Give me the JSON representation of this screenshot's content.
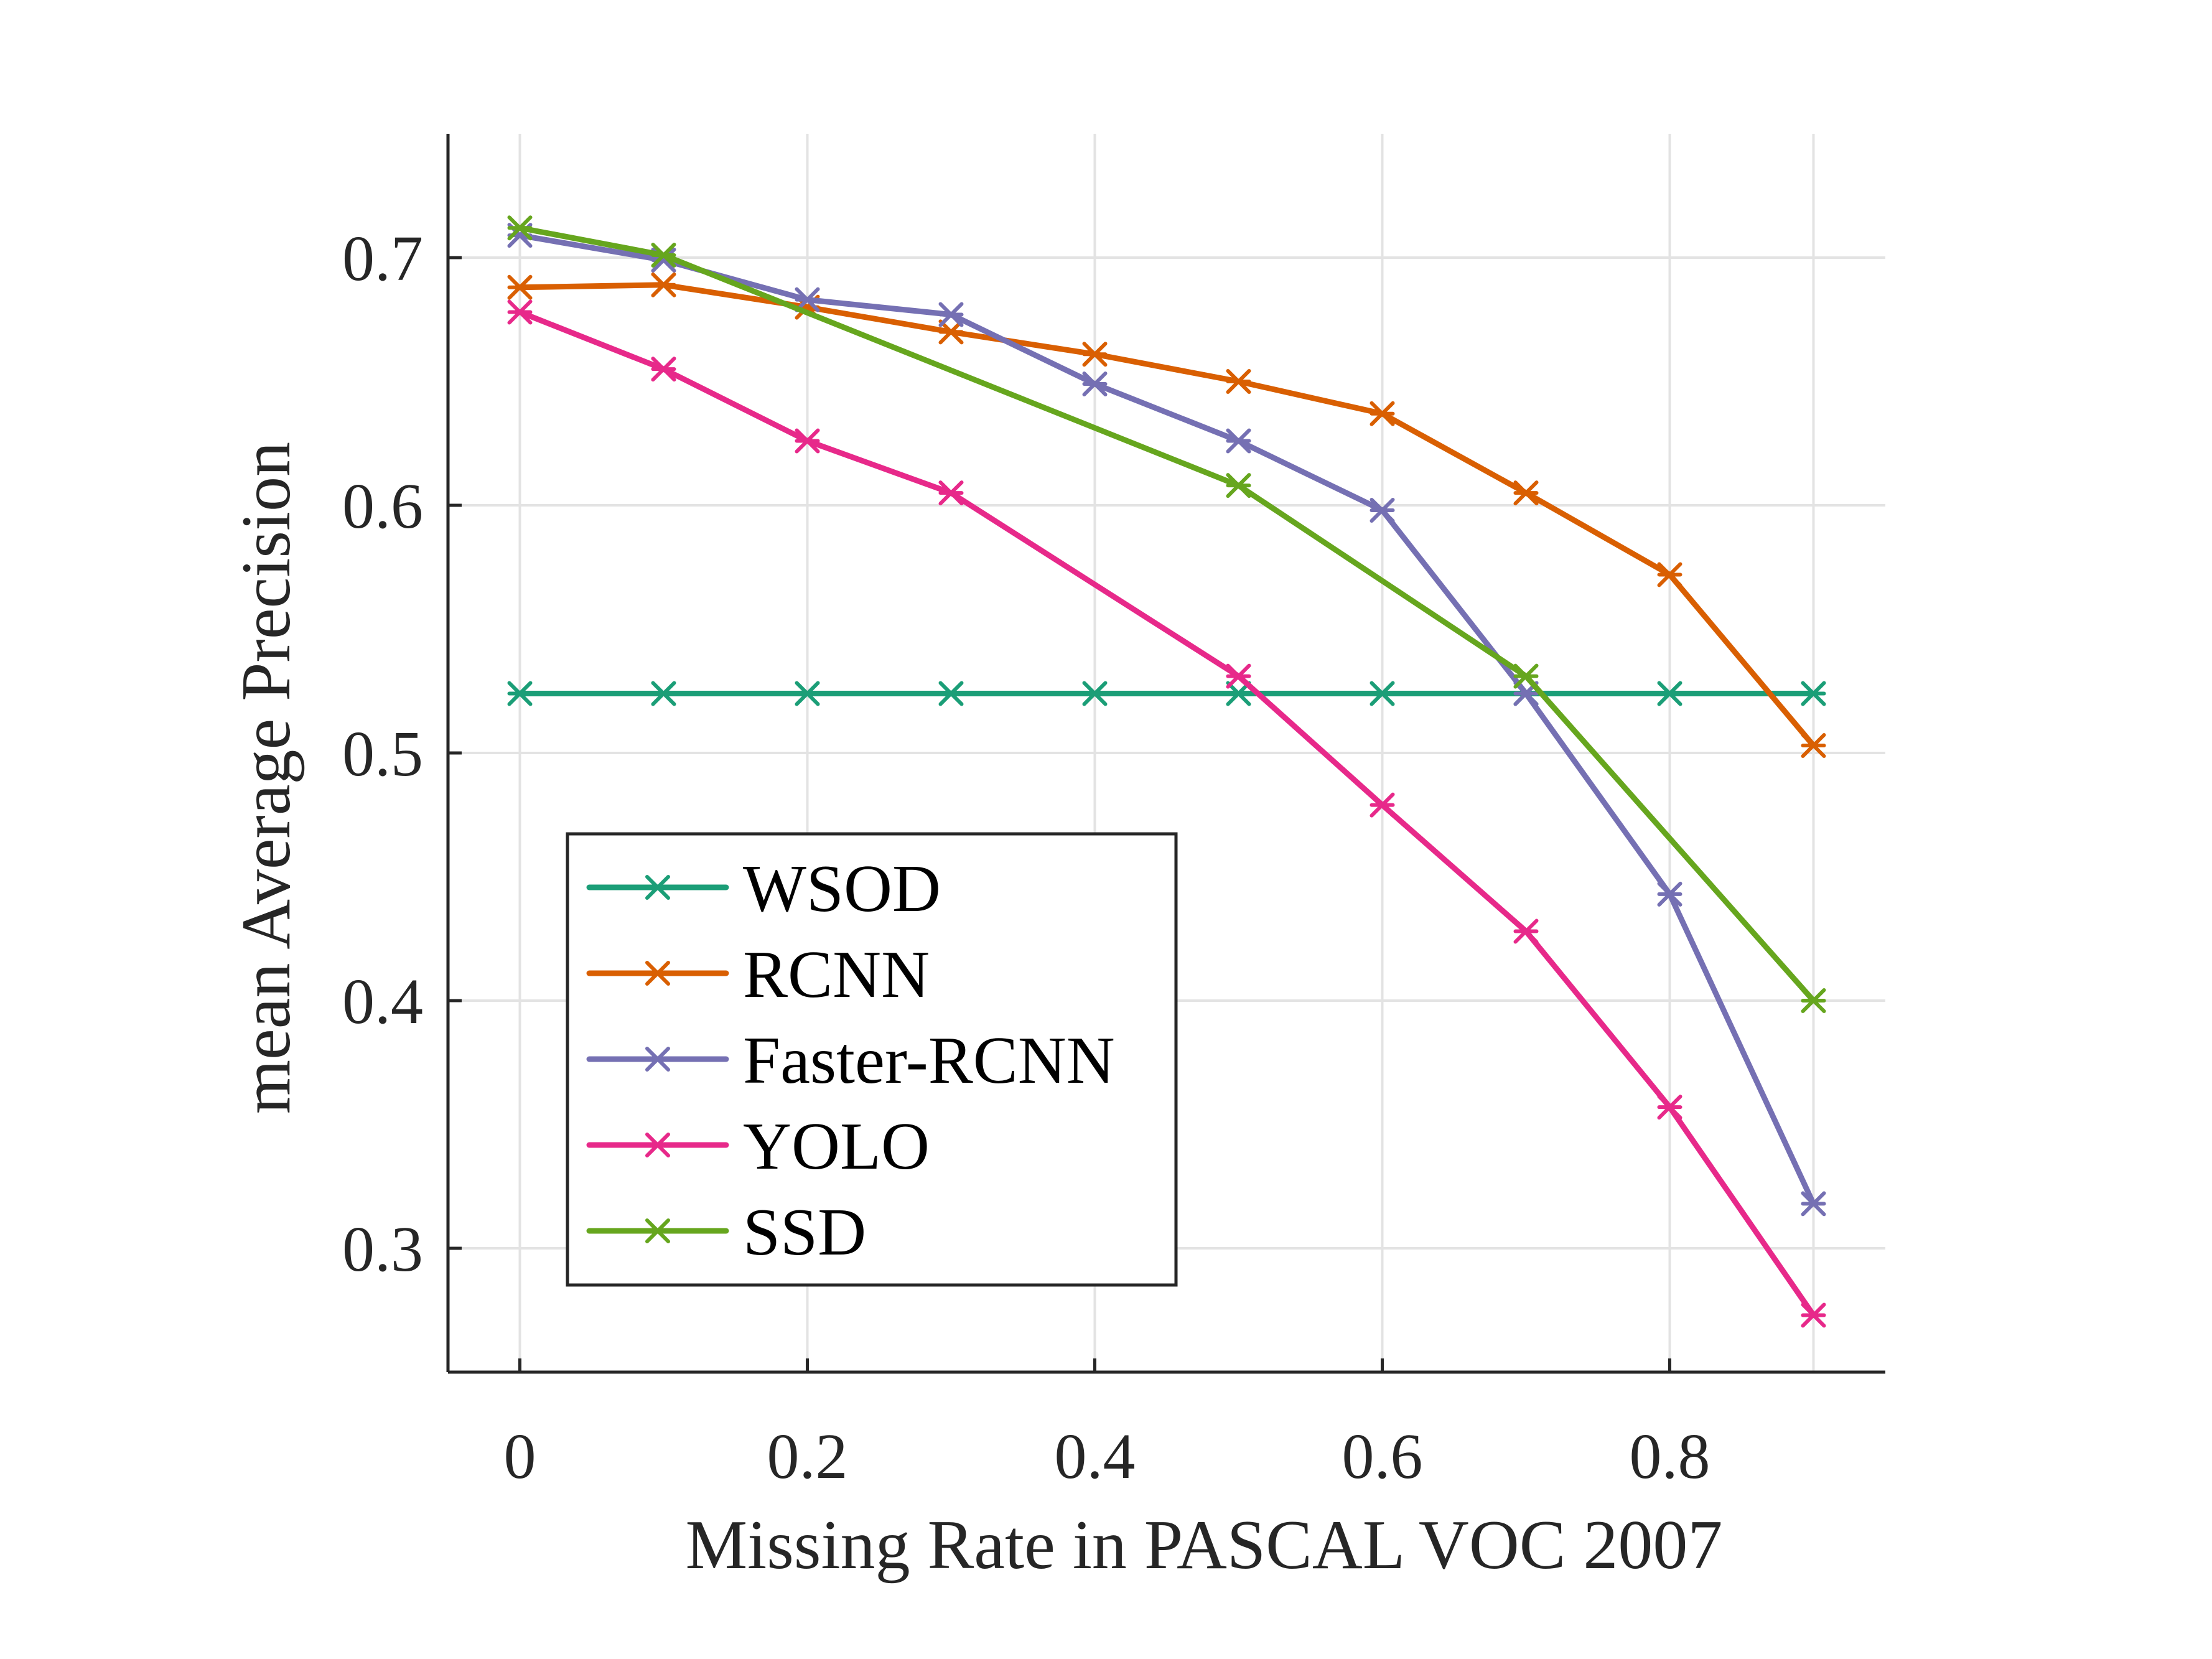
{
  "chart_data": {
    "type": "line",
    "xlabel": "Missing Rate in PASCAL VOC 2007",
    "ylabel": "mean Average Precision",
    "xlim": [
      -0.05,
      0.95
    ],
    "ylim": [
      0.25,
      0.75
    ],
    "xticks": [
      "0",
      "0.2",
      "0.4",
      "0.6",
      "0.8"
    ],
    "xtick_values": [
      0,
      0.2,
      0.4,
      0.6,
      0.8
    ],
    "yticks": [
      "0.3",
      "0.4",
      "0.5",
      "0.6",
      "0.7"
    ],
    "ytick_values": [
      0.3,
      0.4,
      0.5,
      0.6,
      0.7
    ],
    "grid": true,
    "legend_position": "lower-left",
    "x": [
      0,
      0.1,
      0.2,
      0.3,
      0.4,
      0.5,
      0.6,
      0.7,
      0.8,
      0.9
    ],
    "series": [
      {
        "name": "WSOD",
        "color": "#1b9e77",
        "marker": "x-star",
        "values": [
          0.524,
          0.524,
          0.524,
          0.524,
          0.524,
          0.524,
          0.524,
          0.524,
          0.524,
          0.524
        ]
      },
      {
        "name": "RCNN",
        "color": "#d95f02",
        "marker": "x-star",
        "values": [
          0.688,
          0.689,
          0.68,
          0.67,
          0.661,
          0.65,
          0.637,
          0.605,
          0.572,
          0.503
        ]
      },
      {
        "name": "Faster-RCNN",
        "color": "#7570b3",
        "marker": "x-star",
        "values": [
          0.709,
          0.699,
          0.683,
          0.677,
          0.649,
          0.626,
          0.598,
          0.524,
          0.443,
          0.318
        ]
      },
      {
        "name": "YOLO",
        "color": "#e7298a",
        "marker": "x-star",
        "values": [
          0.678,
          0.655,
          0.626,
          0.605,
          null,
          0.531,
          0.479,
          0.428,
          0.357,
          0.273
        ]
      },
      {
        "name": "SSD",
        "color": "#66a61e",
        "marker": "x-star",
        "values": [
          0.712,
          0.701,
          null,
          null,
          null,
          0.608,
          null,
          0.531,
          null,
          0.4
        ]
      }
    ]
  }
}
